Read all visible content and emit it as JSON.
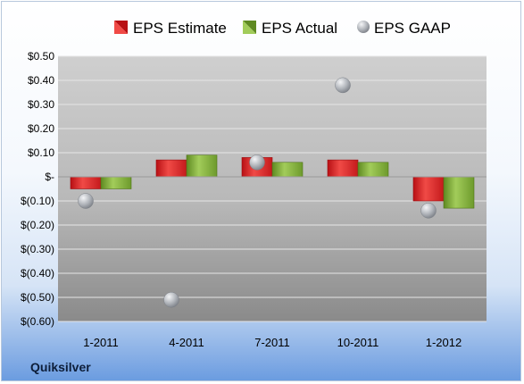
{
  "footer": {
    "company": "Quiksilver"
  },
  "colors": {
    "estimate": "#e0262a",
    "actual": "#86b43a",
    "gaap": "#b4b8be"
  },
  "chart_data": {
    "type": "bar",
    "categories": [
      "1-2011",
      "4-2011",
      "7-2011",
      "10-2011",
      "1-2012"
    ],
    "series": [
      {
        "name": "EPS Estimate",
        "kind": "bar",
        "values": [
          -0.05,
          0.07,
          0.08,
          0.07,
          -0.1
        ]
      },
      {
        "name": "EPS Actual",
        "kind": "bar",
        "values": [
          -0.05,
          0.09,
          0.06,
          0.06,
          -0.13
        ]
      },
      {
        "name": "EPS GAAP",
        "kind": "scatter",
        "values": [
          -0.1,
          -0.51,
          0.06,
          0.38,
          -0.14
        ]
      }
    ],
    "ylim": [
      -0.6,
      0.5
    ],
    "yticks": [
      0.5,
      0.4,
      0.3,
      0.2,
      0.1,
      0,
      -0.1,
      -0.2,
      -0.3,
      -0.4,
      -0.5,
      -0.6
    ],
    "ytick_labels": [
      "$0.50",
      "$0.40",
      "$0.30",
      "$0.20",
      "$0.10",
      "$-",
      "$(0.10)",
      "$(0.20)",
      "$(0.30)",
      "$(0.40)",
      "$(0.50)",
      "$(0.60)"
    ],
    "legend_position": "top",
    "grid": true
  }
}
